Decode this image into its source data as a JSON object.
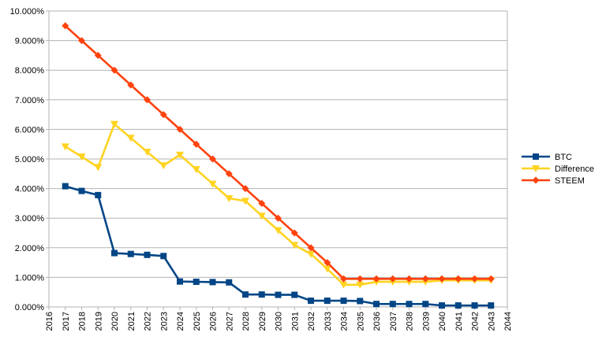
{
  "chart_data": {
    "type": "line",
    "title": "",
    "xlabel": "",
    "ylabel": "",
    "x_ticks": [
      "2016",
      "2017",
      "2018",
      "2019",
      "2020",
      "2021",
      "2022",
      "2023",
      "2024",
      "2025",
      "2026",
      "2027",
      "2028",
      "2029",
      "2030",
      "2031",
      "2032",
      "2033",
      "2034",
      "2035",
      "2036",
      "2037",
      "2038",
      "2039",
      "2040",
      "2041",
      "2042",
      "2043",
      "2044"
    ],
    "y_ticks": [
      "0.000%",
      "1.000%",
      "2.000%",
      "3.000%",
      "4.000%",
      "5.000%",
      "6.000%",
      "7.000%",
      "8.000%",
      "9.000%",
      "10.000%"
    ],
    "xlim": [
      2016,
      2044
    ],
    "ylim": [
      0,
      10
    ],
    "y_unit": "percent",
    "grid": {
      "horizontal": true,
      "vertical": false
    },
    "legend_position": "right",
    "x": [
      2017,
      2018,
      2019,
      2020,
      2021,
      2022,
      2023,
      2024,
      2025,
      2026,
      2027,
      2028,
      2029,
      2030,
      2031,
      2032,
      2033,
      2034,
      2035,
      2036,
      2037,
      2038,
      2039,
      2040,
      2041,
      2042,
      2043
    ],
    "series": [
      {
        "name": "BTC",
        "color": "#004586",
        "marker": "square",
        "values": [
          4.08,
          3.92,
          3.78,
          1.82,
          1.79,
          1.76,
          1.72,
          0.86,
          0.85,
          0.84,
          0.83,
          0.42,
          0.42,
          0.41,
          0.41,
          0.21,
          0.21,
          0.21,
          0.2,
          0.1,
          0.1,
          0.1,
          0.1,
          0.05,
          0.05,
          0.05,
          0.05
        ]
      },
      {
        "name": "Difference",
        "color": "#ffd320",
        "marker": "triangle-down",
        "values": [
          5.42,
          5.08,
          4.72,
          6.18,
          5.71,
          5.24,
          4.78,
          5.14,
          4.65,
          4.16,
          3.67,
          3.58,
          3.08,
          2.59,
          2.09,
          1.79,
          1.29,
          0.75,
          0.75,
          0.85,
          0.85,
          0.85,
          0.85,
          0.9,
          0.9,
          0.9,
          0.9
        ]
      },
      {
        "name": "STEEM",
        "color": "#ff420e",
        "marker": "diamond",
        "values": [
          9.5,
          9.0,
          8.5,
          8.0,
          7.5,
          7.0,
          6.5,
          6.0,
          5.5,
          5.0,
          4.5,
          4.0,
          3.5,
          3.0,
          2.5,
          2.0,
          1.5,
          0.95,
          0.95,
          0.95,
          0.95,
          0.95,
          0.95,
          0.95,
          0.95,
          0.95,
          0.95
        ]
      }
    ]
  }
}
